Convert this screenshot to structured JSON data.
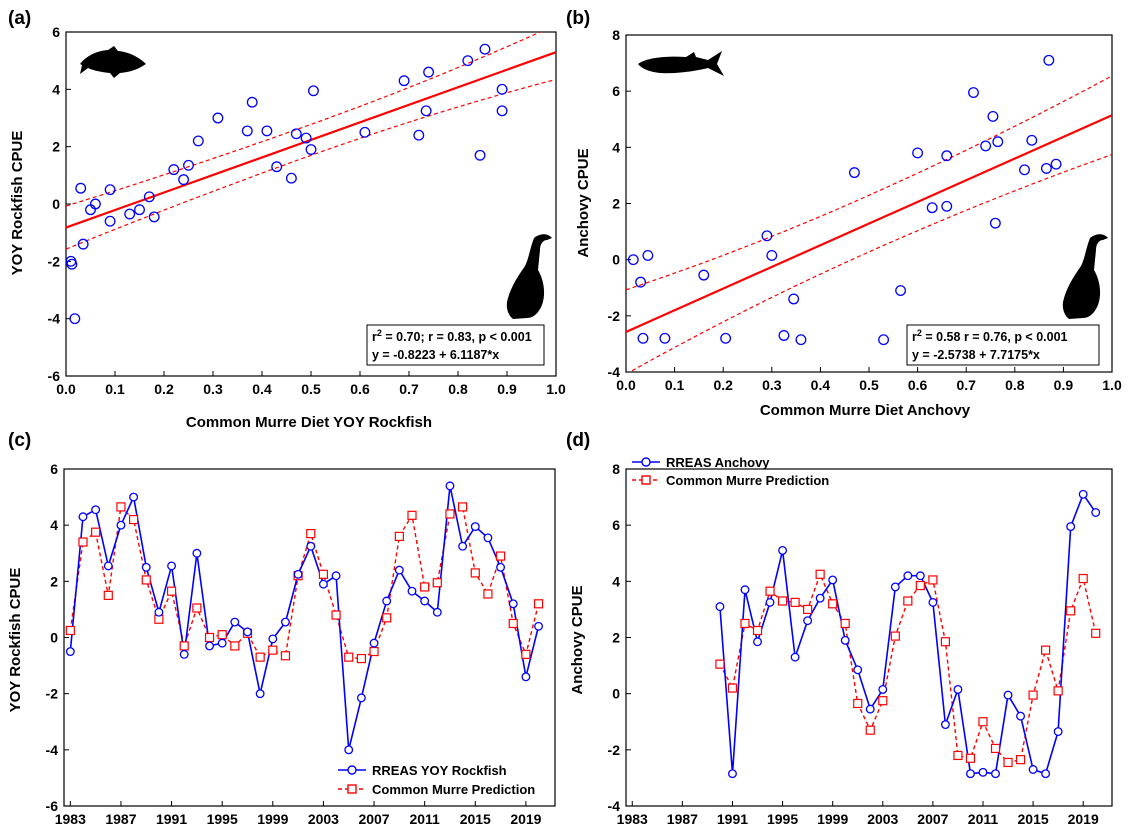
{
  "colors": {
    "observed": "#0000ff",
    "predicted": "#ff0000",
    "fit": "#ff0000",
    "axis": "#000000",
    "silhouette": "#000000"
  },
  "chart_data": [
    {
      "panel_label": "(a)",
      "type": "scatter",
      "xlabel": "Common Murre Diet YOY Rockfish",
      "ylabel": "YOY Rockfish CPUE",
      "xlim": [
        0,
        1
      ],
      "ylim": [
        -6,
        6
      ],
      "xticks": [
        "0.0",
        "0.1",
        "0.2",
        "0.3",
        "0.4",
        "0.5",
        "0.6",
        "0.7",
        "0.8",
        "0.9",
        "1.0"
      ],
      "yticks": [
        "-6",
        "-4",
        "-2",
        "0",
        "2",
        "4",
        "6"
      ],
      "grid": false,
      "icons": [
        "rockfish-silhouette-icon",
        "murre-silhouette-icon"
      ],
      "points": {
        "x": [
          0.01,
          0.012,
          0.018,
          0.03,
          0.035,
          0.05,
          0.06,
          0.09,
          0.09,
          0.13,
          0.15,
          0.17,
          0.18,
          0.22,
          0.24,
          0.25,
          0.27,
          0.31,
          0.37,
          0.38,
          0.41,
          0.43,
          0.46,
          0.47,
          0.49,
          0.5,
          0.505,
          0.61,
          0.69,
          0.72,
          0.735,
          0.74,
          0.82,
          0.845,
          0.855,
          0.89,
          0.89
        ],
        "y": [
          -2.0,
          -2.1,
          -4.0,
          0.55,
          -1.4,
          -0.2,
          0.0,
          0.5,
          -0.6,
          -0.35,
          -0.2,
          0.25,
          -0.45,
          1.2,
          0.85,
          1.35,
          2.2,
          3.0,
          2.55,
          3.55,
          2.55,
          1.3,
          0.9,
          2.45,
          2.3,
          1.9,
          3.95,
          2.5,
          4.3,
          2.4,
          3.25,
          4.6,
          5.0,
          1.7,
          5.4,
          4.0,
          3.25
        ]
      },
      "fit": {
        "intercept": -0.8223,
        "slope": 6.1187,
        "ci_half_width_at_min": 0.75,
        "ci_half_width_at_max": 0.95
      },
      "stats": {
        "r2_prefix": "r",
        "r2_suffix": " = 0.70;  r = 0.83, p < 0.001",
        "equation": "y = -0.8223 + 6.1187*x"
      }
    },
    {
      "panel_label": "(b)",
      "type": "scatter",
      "xlabel": "Common Murre Diet Anchovy",
      "ylabel": "Anchovy CPUE",
      "xlim": [
        0,
        1
      ],
      "ylim": [
        -4,
        8
      ],
      "xticks": [
        "0.0",
        "0.1",
        "0.2",
        "0.3",
        "0.4",
        "0.5",
        "0.6",
        "0.7",
        "0.8",
        "0.9",
        "1.0"
      ],
      "yticks": [
        "-4",
        "-2",
        "0",
        "2",
        "4",
        "6",
        "8"
      ],
      "grid": false,
      "icons": [
        "anchovy-silhouette-icon",
        "murre-silhouette-icon"
      ],
      "points": {
        "x": [
          0.015,
          0.03,
          0.035,
          0.045,
          0.08,
          0.16,
          0.205,
          0.29,
          0.3,
          0.325,
          0.345,
          0.36,
          0.47,
          0.53,
          0.565,
          0.6,
          0.63,
          0.66,
          0.66,
          0.715,
          0.74,
          0.755,
          0.76,
          0.765,
          0.82,
          0.835,
          0.865,
          0.87,
          0.885
        ],
        "y": [
          0.0,
          -0.8,
          -2.8,
          0.15,
          -2.8,
          -0.55,
          -2.8,
          0.85,
          0.15,
          -2.7,
          -1.4,
          -2.85,
          3.1,
          -2.85,
          -1.1,
          3.8,
          1.85,
          3.7,
          1.9,
          5.95,
          4.05,
          5.1,
          1.3,
          4.2,
          3.2,
          4.25,
          3.25,
          7.1,
          3.4
        ]
      },
      "fit": {
        "intercept": -2.5738,
        "slope": 7.7175,
        "ci_half_width_at_min": 1.5,
        "ci_half_width_at_max": 1.4
      },
      "stats": {
        "r2_prefix": "r",
        "r2_suffix": " = 0.58  r = 0.76, p < 0.001",
        "equation": "y = -2.5738 + 7.7175*x"
      }
    },
    {
      "panel_label": "(c)",
      "type": "line",
      "xlabel": "",
      "ylabel": "YOY Rockfish CPUE",
      "xlim": [
        1982.5,
        2021.3
      ],
      "ylim": [
        -6,
        6
      ],
      "xticks": [
        "1983",
        "1987",
        "1991",
        "1995",
        "1999",
        "2003",
        "2007",
        "2011",
        "2015",
        "2019"
      ],
      "yticks": [
        "-6",
        "-4",
        "-2",
        "0",
        "2",
        "4",
        "6"
      ],
      "legend_position": "bottom-right",
      "x": [
        1983,
        1984,
        1985,
        1986,
        1987,
        1988,
        1989,
        1990,
        1991,
        1992,
        1993,
        1994,
        1995,
        1996,
        1997,
        1998,
        1999,
        2000,
        2001,
        2002,
        2003,
        2004,
        2005,
        2006,
        2007,
        2008,
        2009,
        2010,
        2011,
        2012,
        2013,
        2014,
        2015,
        2016,
        2017,
        2018,
        2019,
        2020
      ],
      "series": [
        {
          "name": "RREAS YOY Rockfish",
          "values": [
            -0.5,
            4.3,
            4.55,
            2.55,
            4.0,
            5.0,
            2.5,
            0.9,
            2.55,
            -0.6,
            3.0,
            -0.3,
            -0.2,
            0.55,
            0.2,
            -2.0,
            -0.05,
            0.55,
            2.25,
            3.25,
            1.9,
            2.2,
            -4.0,
            -2.15,
            -0.2,
            1.3,
            2.4,
            1.65,
            1.3,
            0.9,
            5.4,
            3.25,
            3.95,
            3.55,
            2.5,
            1.2,
            -1.4,
            0.4
          ]
        },
        {
          "name": "Common Murre Prediction",
          "values": [
            0.25,
            3.4,
            3.75,
            1.5,
            4.65,
            4.2,
            2.05,
            0.65,
            1.65,
            -0.3,
            1.05,
            0.0,
            0.1,
            -0.3,
            0.15,
            -0.7,
            -0.45,
            -0.65,
            2.2,
            3.7,
            2.25,
            0.8,
            -0.7,
            -0.75,
            -0.5,
            0.7,
            3.6,
            4.35,
            1.8,
            1.95,
            4.4,
            4.65,
            2.3,
            1.55,
            2.9,
            0.5,
            -0.6,
            1.2
          ]
        }
      ]
    },
    {
      "panel_label": "(d)",
      "type": "line",
      "xlabel": "",
      "ylabel": "Anchovy CPUE",
      "xlim": [
        1982.5,
        2021.3
      ],
      "ylim": [
        -4,
        8
      ],
      "xticks": [
        "1983",
        "1987",
        "1991",
        "1995",
        "1999",
        "2003",
        "2007",
        "2011",
        "2015",
        "2019"
      ],
      "yticks": [
        "-4",
        "-2",
        "0",
        "2",
        "4",
        "6",
        "8"
      ],
      "legend_position": "top-left",
      "x": [
        1990,
        1991,
        1992,
        1993,
        1994,
        1995,
        1996,
        1997,
        1998,
        1999,
        2000,
        2001,
        2002,
        2003,
        2004,
        2005,
        2006,
        2007,
        2008,
        2009,
        2010,
        2011,
        2012,
        2013,
        2014,
        2015,
        2016,
        2017,
        2018,
        2019,
        2020
      ],
      "series": [
        {
          "name": "RREAS Anchovy",
          "values": [
            3.1,
            -2.85,
            3.7,
            1.85,
            3.25,
            5.1,
            1.3,
            2.6,
            3.4,
            4.05,
            1.9,
            0.85,
            -0.55,
            0.15,
            3.8,
            4.2,
            4.2,
            3.25,
            -1.1,
            0.15,
            -2.85,
            -2.8,
            -2.85,
            -0.05,
            -0.8,
            -2.7,
            -2.85,
            -1.35,
            5.95,
            7.1,
            6.45
          ]
        },
        {
          "name": "Common Murre Prediction",
          "values": [
            1.05,
            0.2,
            2.5,
            2.25,
            3.65,
            3.3,
            3.25,
            3.0,
            4.25,
            3.2,
            2.5,
            -0.35,
            -1.3,
            -0.25,
            2.05,
            3.3,
            3.85,
            4.05,
            1.85,
            -2.2,
            -2.3,
            -1.0,
            -1.95,
            -2.45,
            -2.35,
            -0.05,
            1.55,
            0.1,
            2.95,
            4.1,
            2.15
          ]
        }
      ]
    }
  ]
}
